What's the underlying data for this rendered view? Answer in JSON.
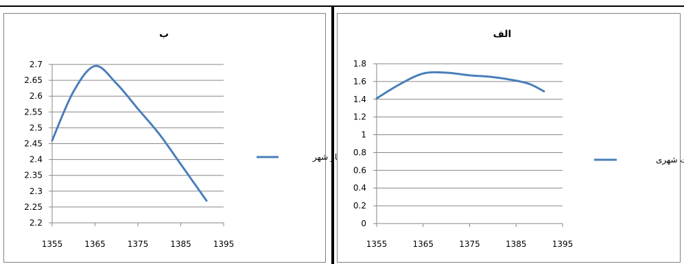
{
  "chart_data": [
    {
      "id": "b",
      "type": "line",
      "title": "ب",
      "xlabel": "",
      "ylabel": "",
      "x": [
        1355,
        1360,
        1365,
        1370,
        1375,
        1380,
        1385,
        1391
      ],
      "series": [
        {
          "name": "چهار شهر",
          "values": [
            2.46,
            2.615,
            2.695,
            2.64,
            2.56,
            2.48,
            2.385,
            2.27
          ]
        }
      ],
      "xlim": [
        1355,
        1395
      ],
      "ylim": [
        2.2,
        2.7
      ],
      "xticks": [
        1355,
        1365,
        1375,
        1385,
        1395
      ],
      "yticks": [
        "2.2",
        "2.25",
        "2.3",
        "2.35",
        "2.4",
        "2.45",
        "2.5",
        "2.55",
        "2.6",
        "2.65",
        "2.7"
      ],
      "grid": "horizontal",
      "legend_position": "right",
      "series_color": "#4a7ebb"
    },
    {
      "id": "alef",
      "type": "line",
      "title": "الف",
      "xlabel": "",
      "ylabel": "",
      "x": [
        1355,
        1360,
        1365,
        1370,
        1375,
        1380,
        1385,
        1388,
        1391
      ],
      "series": [
        {
          "name": "نخست شهری",
          "values": [
            1.41,
            1.57,
            1.69,
            1.7,
            1.67,
            1.65,
            1.61,
            1.57,
            1.49
          ]
        }
      ],
      "xlim": [
        1355,
        1395
      ],
      "ylim": [
        0,
        1.8
      ],
      "xticks": [
        1355,
        1365,
        1375,
        1385,
        1395
      ],
      "yticks": [
        "0",
        "0.2",
        "0.4",
        "0.6",
        "0.8",
        "1",
        "1.2",
        "1.4",
        "1.6",
        "1.8"
      ],
      "grid": "horizontal",
      "legend_position": "right",
      "series_color": "#4a7ebb"
    }
  ]
}
